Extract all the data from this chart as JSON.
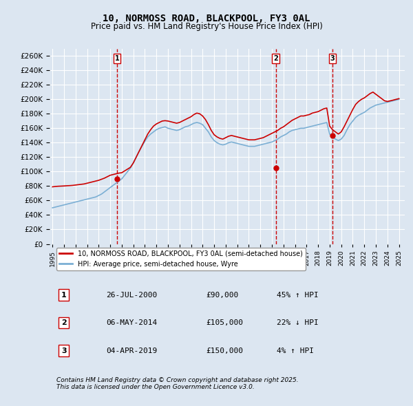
{
  "title": "10, NORMOSS ROAD, BLACKPOOL, FY3 0AL",
  "subtitle": "Price paid vs. HM Land Registry's House Price Index (HPI)",
  "xlabel": "",
  "ylabel": "",
  "ylim": [
    0,
    270000
  ],
  "ytick_step": 20000,
  "background_color": "#dce6f1",
  "plot_bg_color": "#dce6f1",
  "grid_color": "#ffffff",
  "red_line_color": "#cc0000",
  "blue_line_color": "#7bafd4",
  "sale_marker_color": "#cc0000",
  "vline_color": "#cc0000",
  "sale_dates": [
    "2000-07-26",
    "2014-05-06",
    "2019-04-04"
  ],
  "sale_prices": [
    90000,
    105000,
    150000
  ],
  "sale_labels": [
    "1",
    "2",
    "3"
  ],
  "legend_label_red": "10, NORMOSS ROAD, BLACKPOOL, FY3 0AL (semi-detached house)",
  "legend_label_blue": "HPI: Average price, semi-detached house, Wyre",
  "table_rows": [
    [
      "1",
      "26-JUL-2000",
      "£90,000",
      "45% ↑ HPI"
    ],
    [
      "2",
      "06-MAY-2014",
      "£105,000",
      "22% ↓ HPI"
    ],
    [
      "3",
      "04-APR-2019",
      "£150,000",
      "4% ↑ HPI"
    ]
  ],
  "footnote": "Contains HM Land Registry data © Crown copyright and database right 2025.\nThis data is licensed under the Open Government Licence v3.0.",
  "hpi_dates": [
    1995.0,
    1995.25,
    1995.5,
    1995.75,
    1996.0,
    1996.25,
    1996.5,
    1996.75,
    1997.0,
    1997.25,
    1997.5,
    1997.75,
    1998.0,
    1998.25,
    1998.5,
    1998.75,
    1999.0,
    1999.25,
    1999.5,
    1999.75,
    2000.0,
    2000.25,
    2000.5,
    2000.75,
    2001.0,
    2001.25,
    2001.5,
    2001.75,
    2002.0,
    2002.25,
    2002.5,
    2002.75,
    2003.0,
    2003.25,
    2003.5,
    2003.75,
    2004.0,
    2004.25,
    2004.5,
    2004.75,
    2005.0,
    2005.25,
    2005.5,
    2005.75,
    2006.0,
    2006.25,
    2006.5,
    2006.75,
    2007.0,
    2007.25,
    2007.5,
    2007.75,
    2008.0,
    2008.25,
    2008.5,
    2008.75,
    2009.0,
    2009.25,
    2009.5,
    2009.75,
    2010.0,
    2010.25,
    2010.5,
    2010.75,
    2011.0,
    2011.25,
    2011.5,
    2011.75,
    2012.0,
    2012.25,
    2012.5,
    2012.75,
    2013.0,
    2013.25,
    2013.5,
    2013.75,
    2014.0,
    2014.25,
    2014.5,
    2014.75,
    2015.0,
    2015.25,
    2015.5,
    2015.75,
    2016.0,
    2016.25,
    2016.5,
    2016.75,
    2017.0,
    2017.25,
    2017.5,
    2017.75,
    2018.0,
    2018.25,
    2018.5,
    2018.75,
    2019.0,
    2019.25,
    2019.5,
    2019.75,
    2020.0,
    2020.25,
    2020.5,
    2020.75,
    2021.0,
    2021.25,
    2021.5,
    2021.75,
    2022.0,
    2022.25,
    2022.5,
    2022.75,
    2023.0,
    2023.25,
    2023.5,
    2023.75,
    2024.0,
    2024.25,
    2024.5,
    2024.75,
    2025.0
  ],
  "hpi_values": [
    50000,
    51000,
    52000,
    53000,
    54000,
    55000,
    56000,
    57000,
    58000,
    59000,
    60000,
    61000,
    62000,
    63000,
    64000,
    65000,
    67000,
    69000,
    72000,
    75000,
    78000,
    81000,
    84000,
    87000,
    90000,
    95000,
    100000,
    105000,
    112000,
    120000,
    128000,
    135000,
    142000,
    148000,
    152000,
    155000,
    158000,
    160000,
    161000,
    162000,
    160000,
    159000,
    158000,
    157000,
    158000,
    160000,
    162000,
    163000,
    165000,
    167000,
    168000,
    167000,
    165000,
    160000,
    155000,
    148000,
    143000,
    140000,
    138000,
    137000,
    138000,
    140000,
    141000,
    140000,
    139000,
    138000,
    137000,
    136000,
    135000,
    135000,
    135000,
    136000,
    137000,
    138000,
    139000,
    140000,
    141000,
    143000,
    145000,
    148000,
    150000,
    152000,
    155000,
    157000,
    158000,
    159000,
    160000,
    160000,
    161000,
    162000,
    163000,
    164000,
    165000,
    166000,
    167000,
    168000,
    152000,
    148000,
    145000,
    143000,
    145000,
    150000,
    158000,
    165000,
    170000,
    175000,
    178000,
    180000,
    182000,
    185000,
    188000,
    190000,
    192000,
    193000,
    194000,
    195000,
    196000,
    197000,
    198000,
    199000,
    200000
  ],
  "red_hpi_dates": [
    1995.0,
    1995.25,
    1995.5,
    1995.75,
    1996.0,
    1996.25,
    1996.5,
    1996.75,
    1997.0,
    1997.25,
    1997.5,
    1997.75,
    1998.0,
    1998.25,
    1998.5,
    1998.75,
    1999.0,
    1999.25,
    1999.5,
    1999.75,
    2000.0,
    2000.25,
    2000.5,
    2000.75,
    2001.0,
    2001.25,
    2001.5,
    2001.75,
    2002.0,
    2002.25,
    2002.5,
    2002.75,
    2003.0,
    2003.25,
    2003.5,
    2003.75,
    2004.0,
    2004.25,
    2004.5,
    2004.75,
    2005.0,
    2005.25,
    2005.5,
    2005.75,
    2006.0,
    2006.25,
    2006.5,
    2006.75,
    2007.0,
    2007.25,
    2007.5,
    2007.75,
    2008.0,
    2008.25,
    2008.5,
    2008.75,
    2009.0,
    2009.25,
    2009.5,
    2009.75,
    2010.0,
    2010.25,
    2010.5,
    2010.75,
    2011.0,
    2011.25,
    2011.5,
    2011.75,
    2012.0,
    2012.25,
    2012.5,
    2012.75,
    2013.0,
    2013.25,
    2013.5,
    2013.75,
    2014.0,
    2014.25,
    2014.5,
    2014.75,
    2015.0,
    2015.25,
    2015.5,
    2015.75,
    2016.0,
    2016.25,
    2016.5,
    2016.75,
    2017.0,
    2017.25,
    2017.5,
    2017.75,
    2018.0,
    2018.25,
    2018.5,
    2018.75,
    2019.0,
    2019.25,
    2019.5,
    2019.75,
    2020.0,
    2020.25,
    2020.5,
    2020.75,
    2021.0,
    2021.25,
    2021.5,
    2021.75,
    2022.0,
    2022.25,
    2022.5,
    2022.75,
    2023.0,
    2023.25,
    2023.5,
    2023.75,
    2024.0,
    2024.25,
    2024.5,
    2024.75,
    2025.0
  ],
  "red_values": [
    79000,
    79500,
    79800,
    80000,
    80200,
    80500,
    80700,
    81000,
    81500,
    82000,
    82500,
    83000,
    84000,
    85000,
    86000,
    87000,
    88000,
    89500,
    91000,
    93000,
    95000,
    96000,
    97000,
    98000,
    98500,
    101000,
    103500,
    106000,
    112000,
    120000,
    128000,
    136000,
    144000,
    152000,
    158000,
    163000,
    166000,
    168000,
    170000,
    170500,
    170000,
    169000,
    168000,
    167000,
    168000,
    170000,
    172000,
    174000,
    176000,
    179000,
    181000,
    180000,
    177000,
    172000,
    165000,
    157000,
    151000,
    148000,
    146000,
    145000,
    147000,
    149000,
    150000,
    149000,
    148000,
    147000,
    146000,
    145000,
    144000,
    144000,
    144000,
    145000,
    146000,
    147000,
    149000,
    151000,
    153000,
    155000,
    157000,
    160000,
    162000,
    165000,
    168000,
    171000,
    173000,
    175000,
    177000,
    177000,
    178000,
    179000,
    181000,
    182000,
    183000,
    185000,
    187000,
    188000,
    163000,
    158000,
    155000,
    152000,
    155000,
    162000,
    170000,
    178000,
    186000,
    193000,
    197000,
    200000,
    202000,
    205000,
    208000,
    210000,
    207000,
    204000,
    201000,
    198000,
    197000,
    198000,
    199000,
    200000,
    201000
  ]
}
